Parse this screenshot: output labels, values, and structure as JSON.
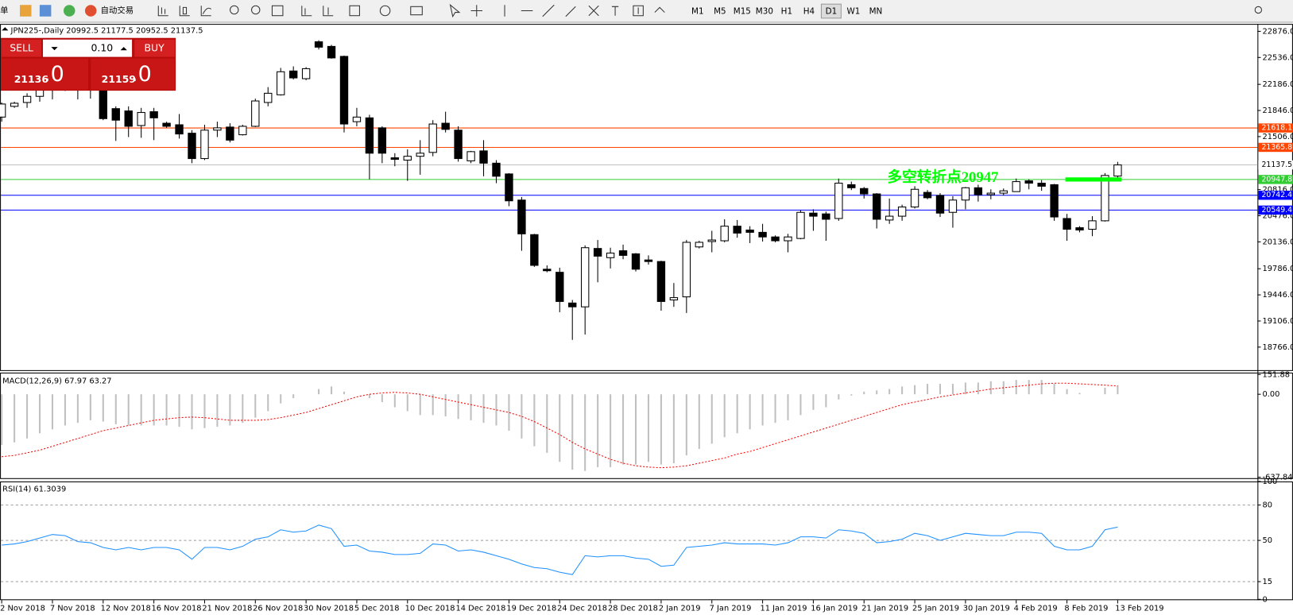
{
  "toolbar": {
    "items": [
      "单",
      "自动交易"
    ],
    "timeframes": [
      "M1",
      "M5",
      "M15",
      "M30",
      "H1",
      "H4",
      "D1",
      "W1",
      "MN"
    ]
  },
  "trade_panel": {
    "sell": "SELL",
    "buy": "BUY",
    "lots": "0.10",
    "bid": "21136",
    "bid_frac": ".0",
    "ask": "21159",
    "ask_frac": ".0"
  },
  "chart_data": [
    {
      "type": "candlestick",
      "title": "JPN225-,Daily  20992.5 21177.5 20952.5 21137.5",
      "categories": [
        "2 Nov 2018",
        null,
        null,
        null,
        "7 Nov 2018",
        null,
        null,
        null,
        "12 Nov 2018",
        null,
        null,
        null,
        "16 Nov 2018",
        null,
        null,
        null,
        "21 Nov 2018",
        null,
        null,
        null,
        "26 Nov 2018",
        null,
        null,
        null,
        "30 Nov 2018",
        null,
        null,
        null,
        "5 Dec 2018",
        null,
        null,
        null,
        "10 Dec 2018",
        null,
        null,
        null,
        "14 Dec 2018",
        null,
        null,
        null,
        "19 Dec 2018",
        null,
        null,
        null,
        "24 Dec 2018",
        null,
        null,
        null,
        "28 Dec 2018",
        null,
        null,
        null,
        "2 Jan 2019",
        null,
        null,
        null,
        "7 Jan 2019",
        null,
        null,
        null,
        "11 Jan 2019",
        null,
        null,
        null,
        "16 Jan 2019",
        null,
        null,
        null,
        "21 Jan 2019",
        null,
        null,
        null,
        "25 Jan 2019",
        null,
        null,
        null,
        "30 Jan 2019",
        null,
        null,
        null,
        "4 Feb 2019",
        null,
        null,
        null,
        "8 Feb 2019",
        null,
        null,
        null,
        "13 Feb 2019"
      ],
      "open": [
        21760,
        21900,
        21950,
        22030,
        22120,
        22150,
        22200,
        22180,
        22110,
        21870,
        21840,
        21650,
        21830,
        21680,
        21660,
        21550,
        21220,
        21590,
        21630,
        21530,
        21640,
        21950,
        22050,
        22360,
        22260,
        22740,
        22680,
        22550,
        21700,
        21750,
        21620,
        21230,
        21200,
        21250,
        21300,
        21680,
        21590,
        21190,
        21320,
        21160,
        21020,
        20680,
        20230,
        19780,
        19740,
        19340,
        19290,
        20050,
        19930,
        20020,
        19980,
        19900,
        19880,
        19380,
        19420,
        20070,
        20140,
        20150,
        20340,
        20290,
        20260,
        20200,
        20150,
        20180,
        20510,
        20500,
        20440,
        20880,
        20830,
        20760,
        20420,
        20470,
        20590,
        20780,
        20740,
        20520,
        20680,
        20840,
        20750,
        20770,
        20790,
        20930,
        20900,
        20880,
        20440,
        20320,
        20300,
        20410,
        20992.5
      ],
      "high": [
        21950,
        21960,
        22070,
        22160,
        22200,
        22260,
        22250,
        22260,
        22150,
        21900,
        21900,
        21880,
        21880,
        21700,
        21800,
        21590,
        21660,
        21700,
        21680,
        21660,
        22000,
        22150,
        22400,
        22420,
        22410,
        22760,
        22700,
        22560,
        21880,
        21790,
        21640,
        21290,
        21340,
        21460,
        21720,
        21830,
        21640,
        21320,
        21460,
        21200,
        21030,
        20720,
        20240,
        19830,
        19800,
        19380,
        20090,
        20160,
        20060,
        20100,
        19990,
        19960,
        19890,
        19600,
        20160,
        20150,
        20280,
        20430,
        20420,
        20340,
        20370,
        20220,
        20240,
        20550,
        20560,
        20530,
        20960,
        20920,
        20850,
        20770,
        20700,
        20620,
        20860,
        20810,
        20770,
        20730,
        20850,
        20880,
        20820,
        20830,
        20960,
        20950,
        20940,
        20890,
        20500,
        20340,
        20470,
        21030,
        21177.5
      ],
      "low": [
        21700,
        21880,
        21880,
        21960,
        21990,
        22100,
        21990,
        22000,
        21720,
        21450,
        21500,
        21490,
        21460,
        21620,
        21480,
        21160,
        21200,
        21500,
        21430,
        21520,
        21630,
        21900,
        22040,
        22250,
        22240,
        22640,
        22520,
        21560,
        21640,
        20950,
        21160,
        21120,
        20930,
        21010,
        21250,
        21560,
        21180,
        21160,
        20990,
        20900,
        20600,
        20020,
        19810,
        19740,
        19220,
        18860,
        18930,
        19610,
        19790,
        19910,
        19750,
        19840,
        19240,
        19290,
        19210,
        20050,
        20000,
        20130,
        20190,
        20120,
        20140,
        20130,
        20000,
        20170,
        20280,
        20150,
        20410,
        20810,
        20700,
        20310,
        20370,
        20410,
        20570,
        20690,
        20460,
        20320,
        20560,
        20660,
        20690,
        20740,
        20790,
        20820,
        20800,
        20410,
        20150,
        20260,
        20210,
        20400,
        20952.5
      ],
      "close": [
        21930,
        21940,
        22030,
        22120,
        22150,
        22200,
        22180,
        22200,
        21740,
        21720,
        21640,
        21820,
        21750,
        21640,
        21540,
        21220,
        21590,
        21620,
        21460,
        21640,
        21970,
        22070,
        22350,
        22270,
        22390,
        22670,
        22530,
        21670,
        21760,
        21290,
        21290,
        21210,
        21250,
        21290,
        21670,
        21600,
        21220,
        21310,
        21160,
        20990,
        20670,
        20240,
        19830,
        19760,
        19360,
        19290,
        20060,
        19950,
        19990,
        19960,
        19780,
        19880,
        19360,
        19410,
        20130,
        20130,
        20160,
        20340,
        20250,
        20260,
        20200,
        20150,
        20200,
        20520,
        20470,
        20430,
        20900,
        20840,
        20760,
        20430,
        20470,
        20590,
        20820,
        20710,
        20510,
        20680,
        20840,
        20750,
        20770,
        20800,
        20920,
        20900,
        20860,
        20460,
        20300,
        20290,
        20410,
        21000,
        21137.5
      ],
      "ylim": [
        18466,
        22962
      ],
      "yticks": [
        {
          "value": 22876,
          "label": "22876.0"
        },
        {
          "value": 22536,
          "label": "22536.0"
        },
        {
          "value": 22186,
          "label": "22186.0"
        },
        {
          "value": 21846,
          "label": "21846.0"
        },
        {
          "value": 21506,
          "label": "21506.0"
        },
        {
          "value": 20816,
          "label": "20816.0"
        },
        {
          "value": 20476,
          "label": "20476.0"
        },
        {
          "value": 20136,
          "label": "20136.0"
        },
        {
          "value": 19786,
          "label": "19786.0"
        },
        {
          "value": 19446,
          "label": "19446.0"
        },
        {
          "value": 19106,
          "label": "19106.0"
        },
        {
          "value": 18766,
          "label": "18766.0"
        }
      ],
      "levels": [
        {
          "value": 21618.1,
          "color": "#ff4500"
        },
        {
          "value": 21365.8,
          "color": "#ff4500"
        },
        {
          "value": 20947.8,
          "color": "#32cd32"
        },
        {
          "value": 20742.4,
          "color": "#0000ff"
        },
        {
          "value": 20549.4,
          "color": "#0000ff"
        },
        {
          "value": 21137.5,
          "color": "#c0c0c0"
        }
      ],
      "annotation": {
        "text": "多空转折点20947",
        "color": "#00ff00"
      }
    },
    {
      "type": "macd",
      "title": "MACD(12,26,9) 67.97 63.27",
      "histogram": [
        -390,
        -370,
        -340,
        -300,
        -270,
        -240,
        -220,
        -200,
        -210,
        -230,
        -240,
        -240,
        -240,
        -240,
        -250,
        -270,
        -260,
        -250,
        -240,
        -220,
        -180,
        -130,
        -70,
        -30,
        0,
        40,
        60,
        20,
        0,
        -30,
        -60,
        -100,
        -130,
        -160,
        -160,
        -170,
        -190,
        -200,
        -220,
        -240,
        -280,
        -340,
        -400,
        -450,
        -520,
        -580,
        -590,
        -560,
        -560,
        -540,
        -540,
        -520,
        -540,
        -530,
        -470,
        -420,
        -380,
        -330,
        -300,
        -270,
        -240,
        -220,
        -200,
        -160,
        -120,
        -100,
        -40,
        -10,
        20,
        30,
        40,
        60,
        70,
        80,
        80,
        80,
        90,
        90,
        100,
        100,
        110,
        110,
        110,
        80,
        40,
        10,
        0,
        50,
        67.97
      ],
      "signal": [
        -480,
        -470,
        -450,
        -430,
        -400,
        -370,
        -340,
        -310,
        -280,
        -260,
        -240,
        -220,
        -200,
        -190,
        -180,
        -175,
        -180,
        -190,
        -200,
        -200,
        -200,
        -195,
        -180,
        -160,
        -140,
        -110,
        -80,
        -50,
        -20,
        0,
        10,
        15,
        10,
        0,
        -20,
        -40,
        -60,
        -80,
        -100,
        -120,
        -140,
        -170,
        -210,
        -260,
        -310,
        -370,
        -420,
        -460,
        -500,
        -530,
        -550,
        -560,
        -565,
        -560,
        -550,
        -530,
        -510,
        -490,
        -460,
        -440,
        -410,
        -380,
        -350,
        -320,
        -290,
        -260,
        -230,
        -200,
        -170,
        -140,
        -110,
        -80,
        -60,
        -40,
        -20,
        -5,
        10,
        25,
        40,
        50,
        60,
        70,
        80,
        85,
        85,
        80,
        75,
        70,
        63.27
      ],
      "histogram_color": "#c0c0c0",
      "signal_color": "#ff0000",
      "ylim": [
        -645,
        160
      ],
      "yticks": [
        151.88,
        {
          "value": 0,
          "label": "0.00"
        },
        -637.84
      ]
    },
    {
      "type": "line",
      "title": "RSI(14) 61.3039",
      "values": [
        46,
        47,
        49,
        52,
        55,
        54,
        49,
        48,
        44,
        42,
        44,
        42,
        44,
        44,
        42,
        34,
        44,
        44,
        42,
        45,
        51,
        53,
        59,
        57,
        58,
        63,
        60,
        45,
        46,
        41,
        40,
        38,
        38,
        39,
        47,
        46,
        41,
        42,
        40,
        37,
        34,
        30,
        27,
        26,
        23,
        21,
        37,
        36,
        37,
        37,
        35,
        34,
        28,
        29,
        44,
        45,
        46,
        48,
        47,
        47,
        47,
        46,
        48,
        53,
        53,
        52,
        59,
        58,
        56,
        48,
        49,
        51,
        56,
        54,
        50,
        53,
        56,
        55,
        54,
        54,
        57,
        57,
        56,
        45,
        42,
        42,
        45,
        59,
        61.3039
      ],
      "color": "#1e90ff",
      "ylim": [
        0,
        100
      ],
      "yticks": [
        100,
        80,
        50,
        15,
        0
      ],
      "grid": true
    }
  ]
}
